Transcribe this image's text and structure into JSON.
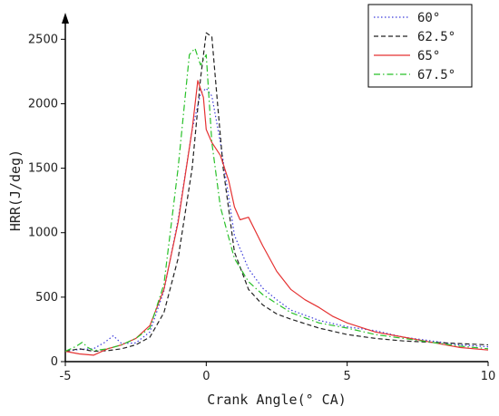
{
  "chart_data": {
    "type": "line",
    "xlabel": "Crank Angle(° CA)",
    "ylabel": "HRR(J/deg)",
    "xlim": [
      -5,
      10
    ],
    "ylim": [
      0,
      2650
    ],
    "x_ticks": [
      "-5",
      "0",
      "5",
      "10"
    ],
    "y_ticks": [
      "0",
      "500",
      "1000",
      "1500",
      "2000",
      "2500"
    ],
    "grid": false,
    "legend_position": "top-right",
    "series": [
      {
        "name": "60°",
        "color": "#3b3bdb",
        "dash": "dotted",
        "x": [
          -5,
          -4.5,
          -4,
          -3.6,
          -3.3,
          -3,
          -2.5,
          -2,
          -1.5,
          -1,
          -0.5,
          -0.2,
          0,
          0.2,
          0.5,
          1,
          1.5,
          2,
          2.5,
          3,
          4,
          5,
          6,
          7,
          8,
          9,
          10
        ],
        "y": [
          80,
          95,
          100,
          150,
          200,
          140,
          145,
          230,
          550,
          1100,
          1800,
          2080,
          2120,
          2060,
          1700,
          980,
          720,
          570,
          480,
          400,
          320,
          270,
          240,
          190,
          160,
          130,
          115
        ]
      },
      {
        "name": "62.5°",
        "color": "#222222",
        "dash": "dashed",
        "x": [
          -5,
          -4.5,
          -4,
          -3.5,
          -3,
          -2.5,
          -2,
          -1.5,
          -1,
          -0.5,
          -0.2,
          0,
          0.2,
          0.4,
          0.6,
          1,
          1.5,
          2,
          2.5,
          3,
          4,
          5,
          6,
          7,
          8,
          9,
          10
        ],
        "y": [
          80,
          100,
          80,
          85,
          100,
          130,
          190,
          380,
          800,
          1500,
          2200,
          2550,
          2520,
          2000,
          1500,
          850,
          560,
          440,
          370,
          330,
          260,
          210,
          180,
          160,
          150,
          140,
          130
        ]
      },
      {
        "name": "65°",
        "color": "#e53232",
        "dash": "solid",
        "x": [
          -5,
          -4.5,
          -4,
          -3.5,
          -3,
          -2.5,
          -2,
          -1.5,
          -1,
          -0.5,
          -0.3,
          -0.1,
          0,
          0.2,
          0.5,
          0.8,
          1,
          1.2,
          1.5,
          2,
          2.5,
          3,
          3.5,
          4,
          4.5,
          5,
          6,
          7,
          8,
          9,
          10
        ],
        "y": [
          80,
          60,
          50,
          100,
          130,
          180,
          280,
          560,
          1080,
          1800,
          2180,
          2050,
          1800,
          1700,
          1600,
          1400,
          1200,
          1100,
          1120,
          900,
          700,
          560,
          480,
          420,
          350,
          300,
          230,
          190,
          150,
          110,
          90
        ]
      },
      {
        "name": "67.5°",
        "color": "#28c028",
        "dash": "dashdot",
        "x": [
          -5,
          -4.6,
          -4.4,
          -4.2,
          -4,
          -3.5,
          -3,
          -2.5,
          -2,
          -1.5,
          -1,
          -0.6,
          -0.4,
          -0.2,
          0,
          0.2,
          0.5,
          1,
          1.5,
          2,
          3,
          4,
          5,
          6,
          7,
          8,
          9,
          10
        ],
        "y": [
          80,
          120,
          150,
          110,
          85,
          100,
          130,
          180,
          260,
          600,
          1500,
          2380,
          2430,
          2300,
          2380,
          1700,
          1200,
          800,
          620,
          520,
          380,
          300,
          260,
          210,
          180,
          150,
          120,
          100
        ]
      }
    ]
  }
}
